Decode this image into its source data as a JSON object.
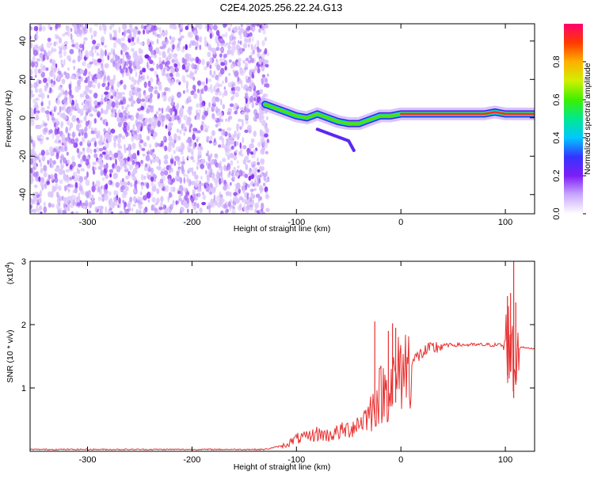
{
  "title": "C2E4.2025.256.22.24.G13",
  "chart_data": [
    {
      "type": "heatmap",
      "xlabel": "Height of straight line (km)",
      "ylabel": "Frequency (Hz)",
      "xlim": [
        -355,
        128
      ],
      "ylim": [
        -50,
        49
      ],
      "xticks": [
        -300,
        -200,
        -100,
        0,
        100
      ],
      "yticks": [
        -40,
        -20,
        0,
        20,
        40
      ],
      "noise_region": {
        "x": [
          -355,
          -127
        ],
        "y": [
          -50,
          49
        ],
        "density": "high"
      },
      "ridge": {
        "x": [
          -130,
          -120,
          -110,
          -100,
          -90,
          -80,
          -70,
          -60,
          -50,
          -40,
          -30,
          -20,
          -10,
          0,
          20,
          40,
          60,
          80,
          90,
          100,
          110,
          128
        ],
        "frequency": [
          7,
          5,
          3,
          1,
          0,
          2,
          0,
          -2,
          -3,
          -3,
          -1,
          1,
          1,
          2,
          2,
          2,
          2,
          2,
          3,
          2,
          2,
          2
        ]
      },
      "branch": {
        "x": [
          -80,
          -65,
          -50,
          -45
        ],
        "frequency": [
          -6,
          -9,
          -12,
          -17
        ]
      },
      "colorbar": {
        "label": "Normalized spectral amplitude",
        "range": [
          0,
          1
        ],
        "ticks": [
          0.0,
          0.2,
          0.4,
          0.6,
          0.8
        ],
        "tick_labels": [
          "0.0",
          "0.2",
          "0.4",
          "0.6",
          "0.8"
        ],
        "colors": [
          "#ffffff",
          "#c9a8ff",
          "#7f1df5",
          "#3434ff",
          "#00c8ff",
          "#00e890",
          "#3cf000",
          "#d0f000",
          "#ffb000",
          "#ff3a00",
          "#ff0070"
        ]
      }
    },
    {
      "type": "line",
      "xlabel": "Height of straight line (km)",
      "ylabel": "SNR (10 * v/v)",
      "y_multiplier": "(x10",
      "y_multiplier_exp": "4",
      "y_multiplier_close": ")",
      "xlim": [
        -355,
        128
      ],
      "ylim": [
        0,
        3
      ],
      "xticks": [
        -300,
        -200,
        -100,
        0,
        100
      ],
      "yticks": [
        1,
        2,
        3
      ],
      "color": "#e83030",
      "series": {
        "x": [
          -355,
          -300,
          -200,
          -130,
          -110,
          -100,
          -90,
          -80,
          -70,
          -60,
          -50,
          -40,
          -30,
          -25,
          -20,
          -15,
          -10,
          -5,
          0,
          5,
          10,
          20,
          30,
          40,
          50,
          60,
          70,
          80,
          90,
          95,
          100,
          105,
          108,
          110,
          112,
          115,
          120,
          128
        ],
        "y": [
          0.03,
          0.03,
          0.03,
          0.03,
          0.1,
          0.2,
          0.22,
          0.28,
          0.25,
          0.3,
          0.35,
          0.45,
          0.6,
          0.75,
          0.9,
          0.95,
          1.05,
          1.1,
          1.3,
          1.35,
          1.4,
          1.55,
          1.62,
          1.67,
          1.68,
          1.68,
          1.68,
          1.68,
          1.68,
          1.68,
          1.65,
          1.8,
          1.2,
          1.5,
          1.6,
          1.65,
          1.63,
          1.62
        ]
      },
      "spikes": [
        {
          "x": -25,
          "y": 2.05
        },
        {
          "x": -12,
          "y": 1.9
        },
        {
          "x": -8,
          "y": 2.02
        },
        {
          "x": -5,
          "y": 1.95
        },
        {
          "x": 102,
          "y": 2.45
        },
        {
          "x": 105,
          "y": 2.5
        },
        {
          "x": 108,
          "y": 3.0
        },
        {
          "x": 110,
          "y": 2.35
        }
      ]
    }
  ]
}
